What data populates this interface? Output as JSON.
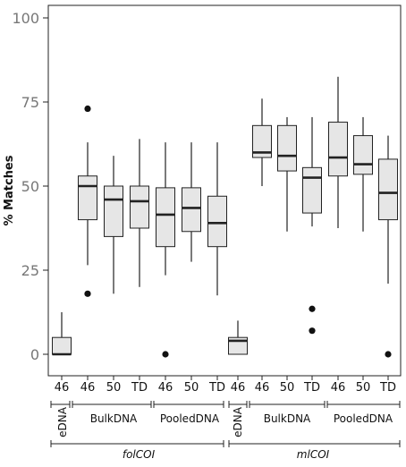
{
  "chart_data": {
    "type": "box",
    "ylabel": "% Matches",
    "ylim": [
      0,
      100
    ],
    "yticks": [
      0,
      25,
      50,
      75,
      100
    ],
    "grid": false,
    "box_fill": "#e6e6e6",
    "categories": [
      "46",
      "46",
      "50",
      "TD",
      "46",
      "50",
      "TD",
      "46",
      "46",
      "50",
      "TD",
      "46",
      "50",
      "TD"
    ],
    "groups": [
      {
        "label": "eDNA",
        "members": [
          0
        ]
      },
      {
        "label": "BulkDNA",
        "members": [
          1,
          2,
          3
        ]
      },
      {
        "label": "PooledDNA",
        "members": [
          4,
          5,
          6
        ]
      },
      {
        "label": "eDNA",
        "members": [
          7
        ]
      },
      {
        "label": "BulkDNA",
        "members": [
          8,
          9,
          10
        ]
      },
      {
        "label": "PooledDNA",
        "members": [
          11,
          12,
          13
        ]
      }
    ],
    "top_groups": [
      {
        "label": "folCOI",
        "members": [
          0,
          6
        ]
      },
      {
        "label": "mlCOI",
        "members": [
          7,
          13
        ]
      }
    ],
    "boxes": [
      {
        "whisker_low": 0,
        "q1": 0,
        "median": 0,
        "q3": 5,
        "whisker_high": 12.5,
        "outliers": []
      },
      {
        "whisker_low": 26.5,
        "q1": 40,
        "median": 50,
        "q3": 53,
        "whisker_high": 63,
        "outliers": [
          18,
          73
        ]
      },
      {
        "whisker_low": 18,
        "q1": 35,
        "median": 46,
        "q3": 50,
        "whisker_high": 59,
        "outliers": []
      },
      {
        "whisker_low": 20,
        "q1": 37.5,
        "median": 45.5,
        "q3": 50,
        "whisker_high": 64,
        "outliers": []
      },
      {
        "whisker_low": 23.5,
        "q1": 32,
        "median": 41.5,
        "q3": 49.5,
        "whisker_high": 63,
        "outliers": [
          0
        ]
      },
      {
        "whisker_low": 27.5,
        "q1": 36.5,
        "median": 43.5,
        "q3": 49.5,
        "whisker_high": 63,
        "outliers": []
      },
      {
        "whisker_low": 17.5,
        "q1": 32,
        "median": 39,
        "q3": 47,
        "whisker_high": 63,
        "outliers": []
      },
      {
        "whisker_low": 0,
        "q1": 0,
        "median": 4,
        "q3": 5,
        "whisker_high": 10,
        "outliers": []
      },
      {
        "whisker_low": 50,
        "q1": 58.5,
        "median": 60,
        "q3": 68,
        "whisker_high": 76,
        "outliers": []
      },
      {
        "whisker_low": 36.5,
        "q1": 54.5,
        "median": 59,
        "q3": 68,
        "whisker_high": 70.5,
        "outliers": []
      },
      {
        "whisker_low": 38,
        "q1": 42,
        "median": 52.5,
        "q3": 55.5,
        "whisker_high": 70.5,
        "outliers": [
          7,
          13.5
        ]
      },
      {
        "whisker_low": 37.5,
        "q1": 53,
        "median": 58.5,
        "q3": 69,
        "whisker_high": 82.5,
        "outliers": []
      },
      {
        "whisker_low": 36.5,
        "q1": 53.5,
        "median": 56.5,
        "q3": 65,
        "whisker_high": 70.5,
        "outliers": []
      },
      {
        "whisker_low": 21,
        "q1": 40,
        "median": 48,
        "q3": 58,
        "whisker_high": 65,
        "outliers": [
          0
        ]
      }
    ]
  }
}
